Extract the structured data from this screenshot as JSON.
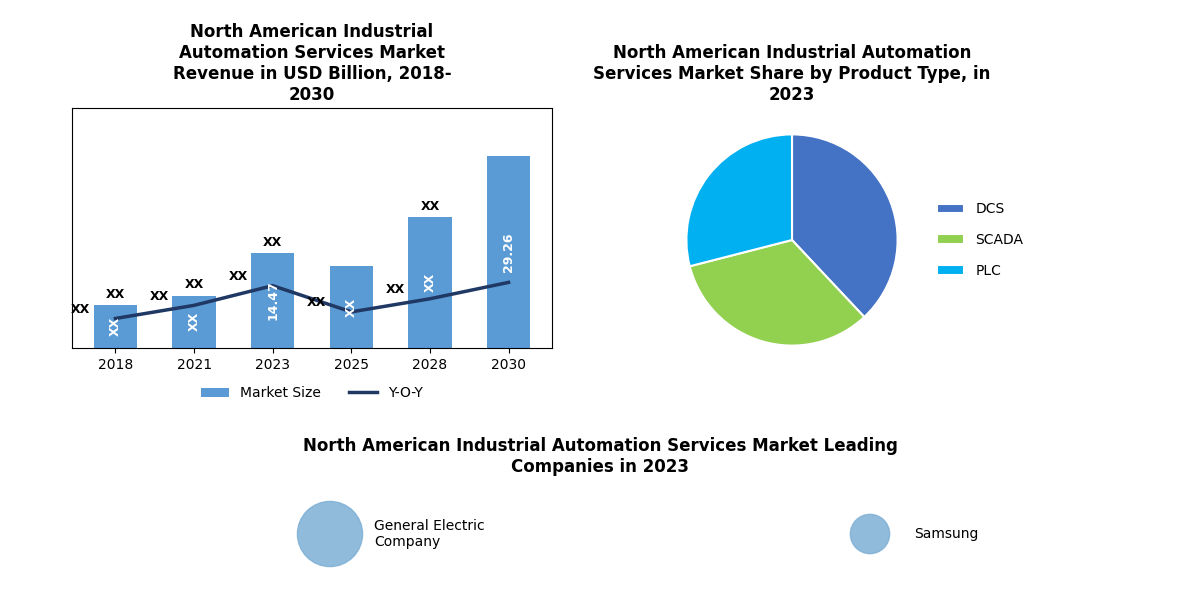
{
  "chart_data": [
    {
      "type": "bar",
      "title": "North American Industrial\nAutomation Services Market\nRevenue in USD Billion, 2018-\n2030",
      "categories": [
        "2018",
        "2021",
        "2023",
        "2025",
        "2028",
        "2030"
      ],
      "series": [
        {
          "name": "Market Size",
          "type": "bar",
          "color": "#5B9BD5",
          "values": [
            6.5,
            8.0,
            14.47,
            12.5,
            20.0,
            29.26
          ],
          "value_labels": [
            "XX",
            "XX",
            "14.47",
            "XX",
            "XX",
            "29.26"
          ]
        },
        {
          "name": "Y-O-Y",
          "type": "line",
          "color": "#1F3864",
          "values": [
            4.5,
            6.5,
            9.5,
            5.5,
            7.5,
            10.0
          ],
          "value_labels": [
            "XX",
            "XX",
            "XX",
            "XX",
            "XX",
            null
          ]
        }
      ],
      "annotations": [
        {
          "text": "XX",
          "category": "2018"
        },
        {
          "text": "XX",
          "category": "2021"
        },
        {
          "text": "XX",
          "category": "2023"
        },
        {
          "text": "XX",
          "category": "2028"
        }
      ],
      "ylim": [
        0,
        36.575
      ],
      "tick_labels": "x",
      "legend": "lower center"
    },
    {
      "type": "pie",
      "title": "North American Industrial Automation\nServices Market Share by Product Type, in\n2023",
      "categories": [
        "DCS",
        "SCADA",
        "PLC"
      ],
      "values": [
        38,
        33,
        29
      ],
      "colors": [
        "#4472C4",
        "#92D050",
        "#00B0F0"
      ],
      "legend": "center left"
    },
    {
      "type": "bubble",
      "title": "North American Industrial Automation Services Market Leading\nCompanies in 2023",
      "categories": [
        "General Electric\nCompany",
        "Samsung"
      ],
      "sizes": [
        2200,
        800
      ],
      "color": "#7EB0D5",
      "tick_labels": false
    }
  ]
}
